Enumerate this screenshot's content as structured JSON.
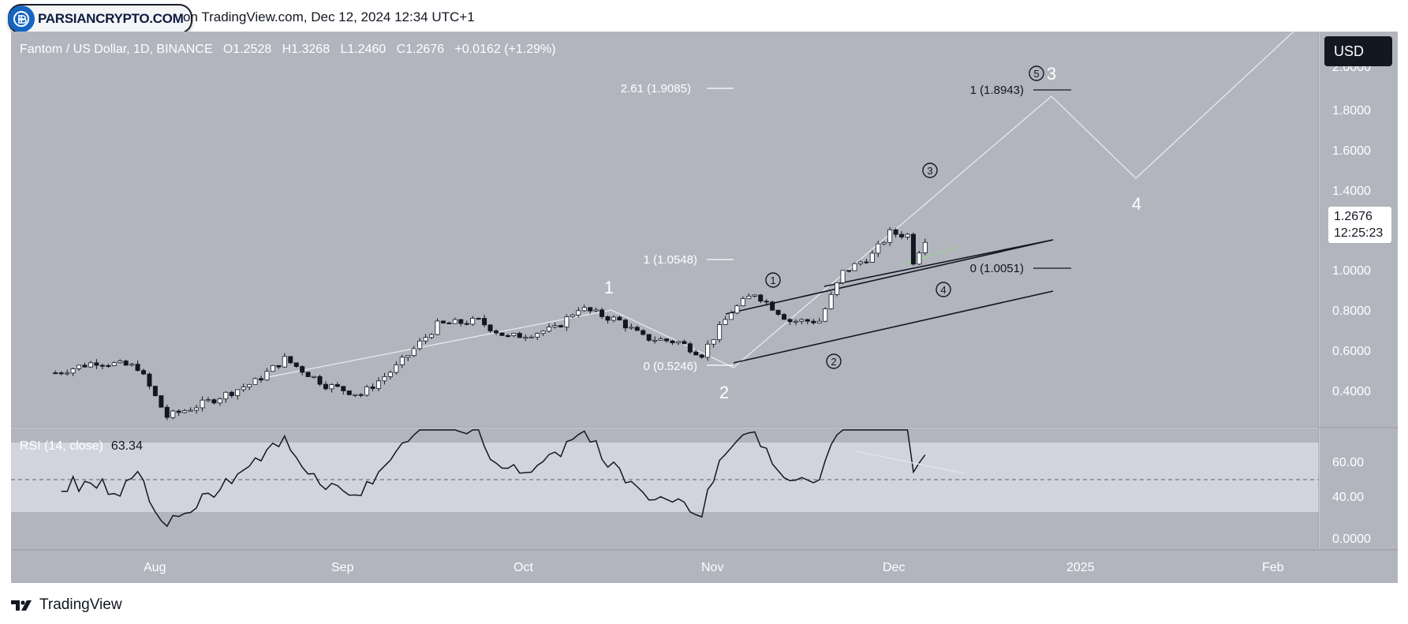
{
  "header": {
    "badge_text": "PARSIANCRYPTO.COM",
    "caption": "on TradingView.com, Dec 12, 2024 12:34 UTC+1"
  },
  "symbol": {
    "title": "Fantom / US Dollar, 1D, BINANCE",
    "o_label": "O",
    "o": "1.2528",
    "h_label": "H",
    "h": "1.3268",
    "l_label": "L",
    "l": "1.2460",
    "c_label": "C",
    "c": "1.2676",
    "change": "+0.0162 (+1.29%)"
  },
  "currency_button": "USD",
  "price_tag": {
    "price": "1.2676",
    "countdown": "12:25:23"
  },
  "price_axis": [
    "2.0000",
    "1.8000",
    "1.6000",
    "1.4000",
    "1.0000",
    "0.8000",
    "0.6000",
    "0.4000"
  ],
  "rsi": {
    "label": "RSI (14, close)",
    "value": "63.34",
    "axis": [
      "60.00",
      "40.00",
      "0.0000"
    ]
  },
  "time_axis": [
    "Aug",
    "Sep",
    "Oct",
    "Nov",
    "Dec",
    "2025",
    "Feb"
  ],
  "fib_labels": {
    "fib_261": "2.61 (1.9085)",
    "fib_1_low": "1 (1.0548)",
    "fib_0_low": "0 (0.5246)",
    "fib_1_high": "1 (1.8943)",
    "fib_0_high": "0 (1.0051)"
  },
  "wave_labels": {
    "w1": "1",
    "w2": "2",
    "w3": "3",
    "w4": "4",
    "c1": "1",
    "c2": "2",
    "c3": "3",
    "c4": "4",
    "c5": "5"
  },
  "footer": {
    "brand": "TradingView"
  },
  "colors": {
    "chart_bg": "#b2b5be",
    "rsi_band": "#d1d4dc",
    "dark": "#131722",
    "white": "#ffffff"
  },
  "chart_data": {
    "type": "candlestick",
    "title": "Fantom / US Dollar, 1D, BINANCE",
    "y_scale": "log",
    "price_range_visible": [
      0.35,
      2.0
    ],
    "x": [
      "Aug",
      "Sep",
      "Oct",
      "Nov",
      "Dec",
      "2025",
      "Feb"
    ],
    "approx_close_path": [
      {
        "date": "Jul 17",
        "close": 0.46
      },
      {
        "date": "Jul 24",
        "close": 0.5
      },
      {
        "date": "Jul 31",
        "close": 0.48
      },
      {
        "date": "Aug 05",
        "close": 0.33
      },
      {
        "date": "Aug 12",
        "close": 0.37
      },
      {
        "date": "Aug 20",
        "close": 0.43
      },
      {
        "date": "Aug 25",
        "close": 0.51
      },
      {
        "date": "Sep 01",
        "close": 0.42
      },
      {
        "date": "Sep 07",
        "close": 0.39
      },
      {
        "date": "Sep 13",
        "close": 0.48
      },
      {
        "date": "Sep 20",
        "close": 0.66
      },
      {
        "date": "Sep 27",
        "close": 0.68
      },
      {
        "date": "Oct 02",
        "close": 0.6
      },
      {
        "date": "Oct 10",
        "close": 0.64
      },
      {
        "date": "Oct 14",
        "close": 0.75
      },
      {
        "date": "Oct 21",
        "close": 0.68
      },
      {
        "date": "Oct 25",
        "close": 0.6
      },
      {
        "date": "Oct 31",
        "close": 0.58
      },
      {
        "date": "Nov 04",
        "close": 0.53
      },
      {
        "date": "Nov 09",
        "close": 0.73
      },
      {
        "date": "Nov 13",
        "close": 0.84
      },
      {
        "date": "Nov 19",
        "close": 0.68
      },
      {
        "date": "Nov 24",
        "close": 0.68
      },
      {
        "date": "Nov 28",
        "close": 0.98
      },
      {
        "date": "Dec 03",
        "close": 1.12
      },
      {
        "date": "Dec 06",
        "close": 1.32
      },
      {
        "date": "Dec 09",
        "close": 1.3
      },
      {
        "date": "Dec 10",
        "close": 1.07
      },
      {
        "date": "Dec 12",
        "close": 1.2676
      }
    ],
    "fibonacci": [
      {
        "level": "2.61",
        "price": 1.9085
      },
      {
        "level": "1",
        "price": 1.0548
      },
      {
        "level": "0",
        "price": 0.5246
      },
      {
        "level": "1",
        "price": 1.8943
      },
      {
        "level": "0",
        "price": 1.0051
      }
    ],
    "rsi": {
      "period": 14,
      "value": 63.34,
      "band": [
        30,
        70
      ],
      "mid": 50
    }
  }
}
